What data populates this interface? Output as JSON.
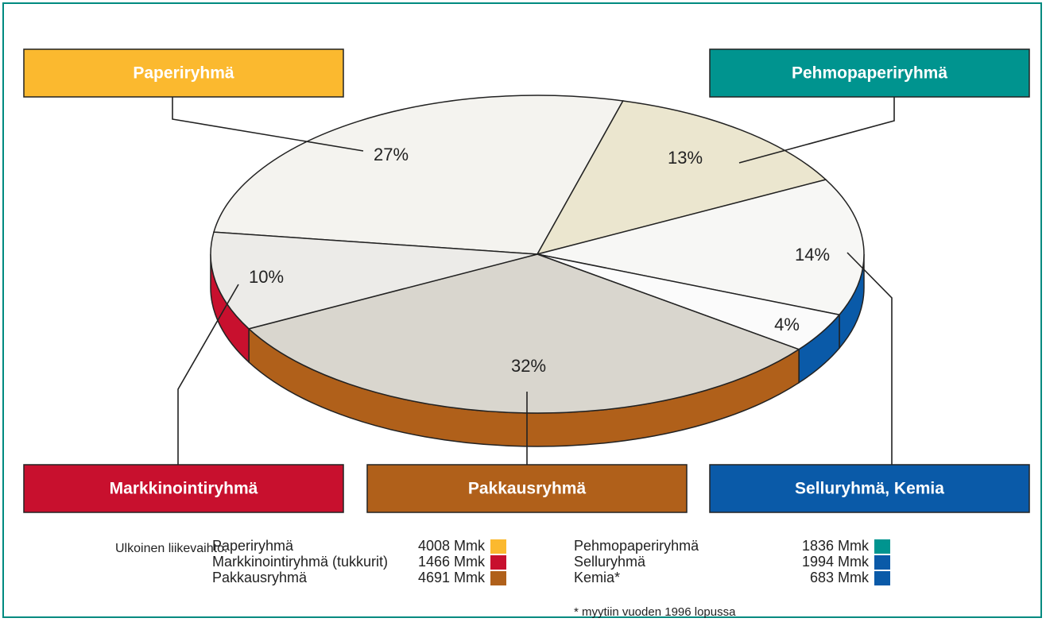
{
  "chart_data": {
    "type": "pie",
    "values": [
      27,
      13,
      14,
      4,
      32,
      10
    ],
    "value_labels": [
      "27%",
      "13%",
      "14%",
      "4%",
      "32%",
      "10%"
    ],
    "colors": [
      "#fbb92f",
      "#00948f",
      "#0a5aa8",
      "#0a5aa8",
      "#b0601a",
      "#c8102e"
    ],
    "callouts": [
      {
        "label": "Paperiryhmä",
        "color": "#fbb92f"
      },
      {
        "label": "Pehmopaperiryhmä",
        "color": "#00948f"
      },
      {
        "label": "Selluryhmä, Kemia",
        "color": "#0a5aa8"
      },
      {
        "label": "Pakkausryhmä",
        "color": "#b0601a"
      },
      {
        "label": "Markkinointiryhmä",
        "color": "#c8102e"
      }
    ]
  },
  "legend": {
    "title": "Ulkoinen liikevaihto:",
    "items": [
      {
        "name": "Paperiryhmä",
        "amount": "4008 Mmk",
        "color": "#fbb92f"
      },
      {
        "name": "Markkinointiryhmä (tukkurit)",
        "amount": "1466 Mmk",
        "color": "#c8102e"
      },
      {
        "name": "Pakkausryhmä",
        "amount": "4691 Mmk",
        "color": "#b0601a"
      },
      {
        "name": "Pehmopaperiryhmä",
        "amount": "1836 Mmk",
        "color": "#00948f"
      },
      {
        "name": "Selluryhmä",
        "amount": "1994 Mmk",
        "color": "#0a5aa8"
      },
      {
        "name": "Kemia*",
        "amount": "683 Mmk",
        "color": "#0a5aa8"
      }
    ]
  },
  "footnote": "* myytiin vuoden 1996 lopussa"
}
